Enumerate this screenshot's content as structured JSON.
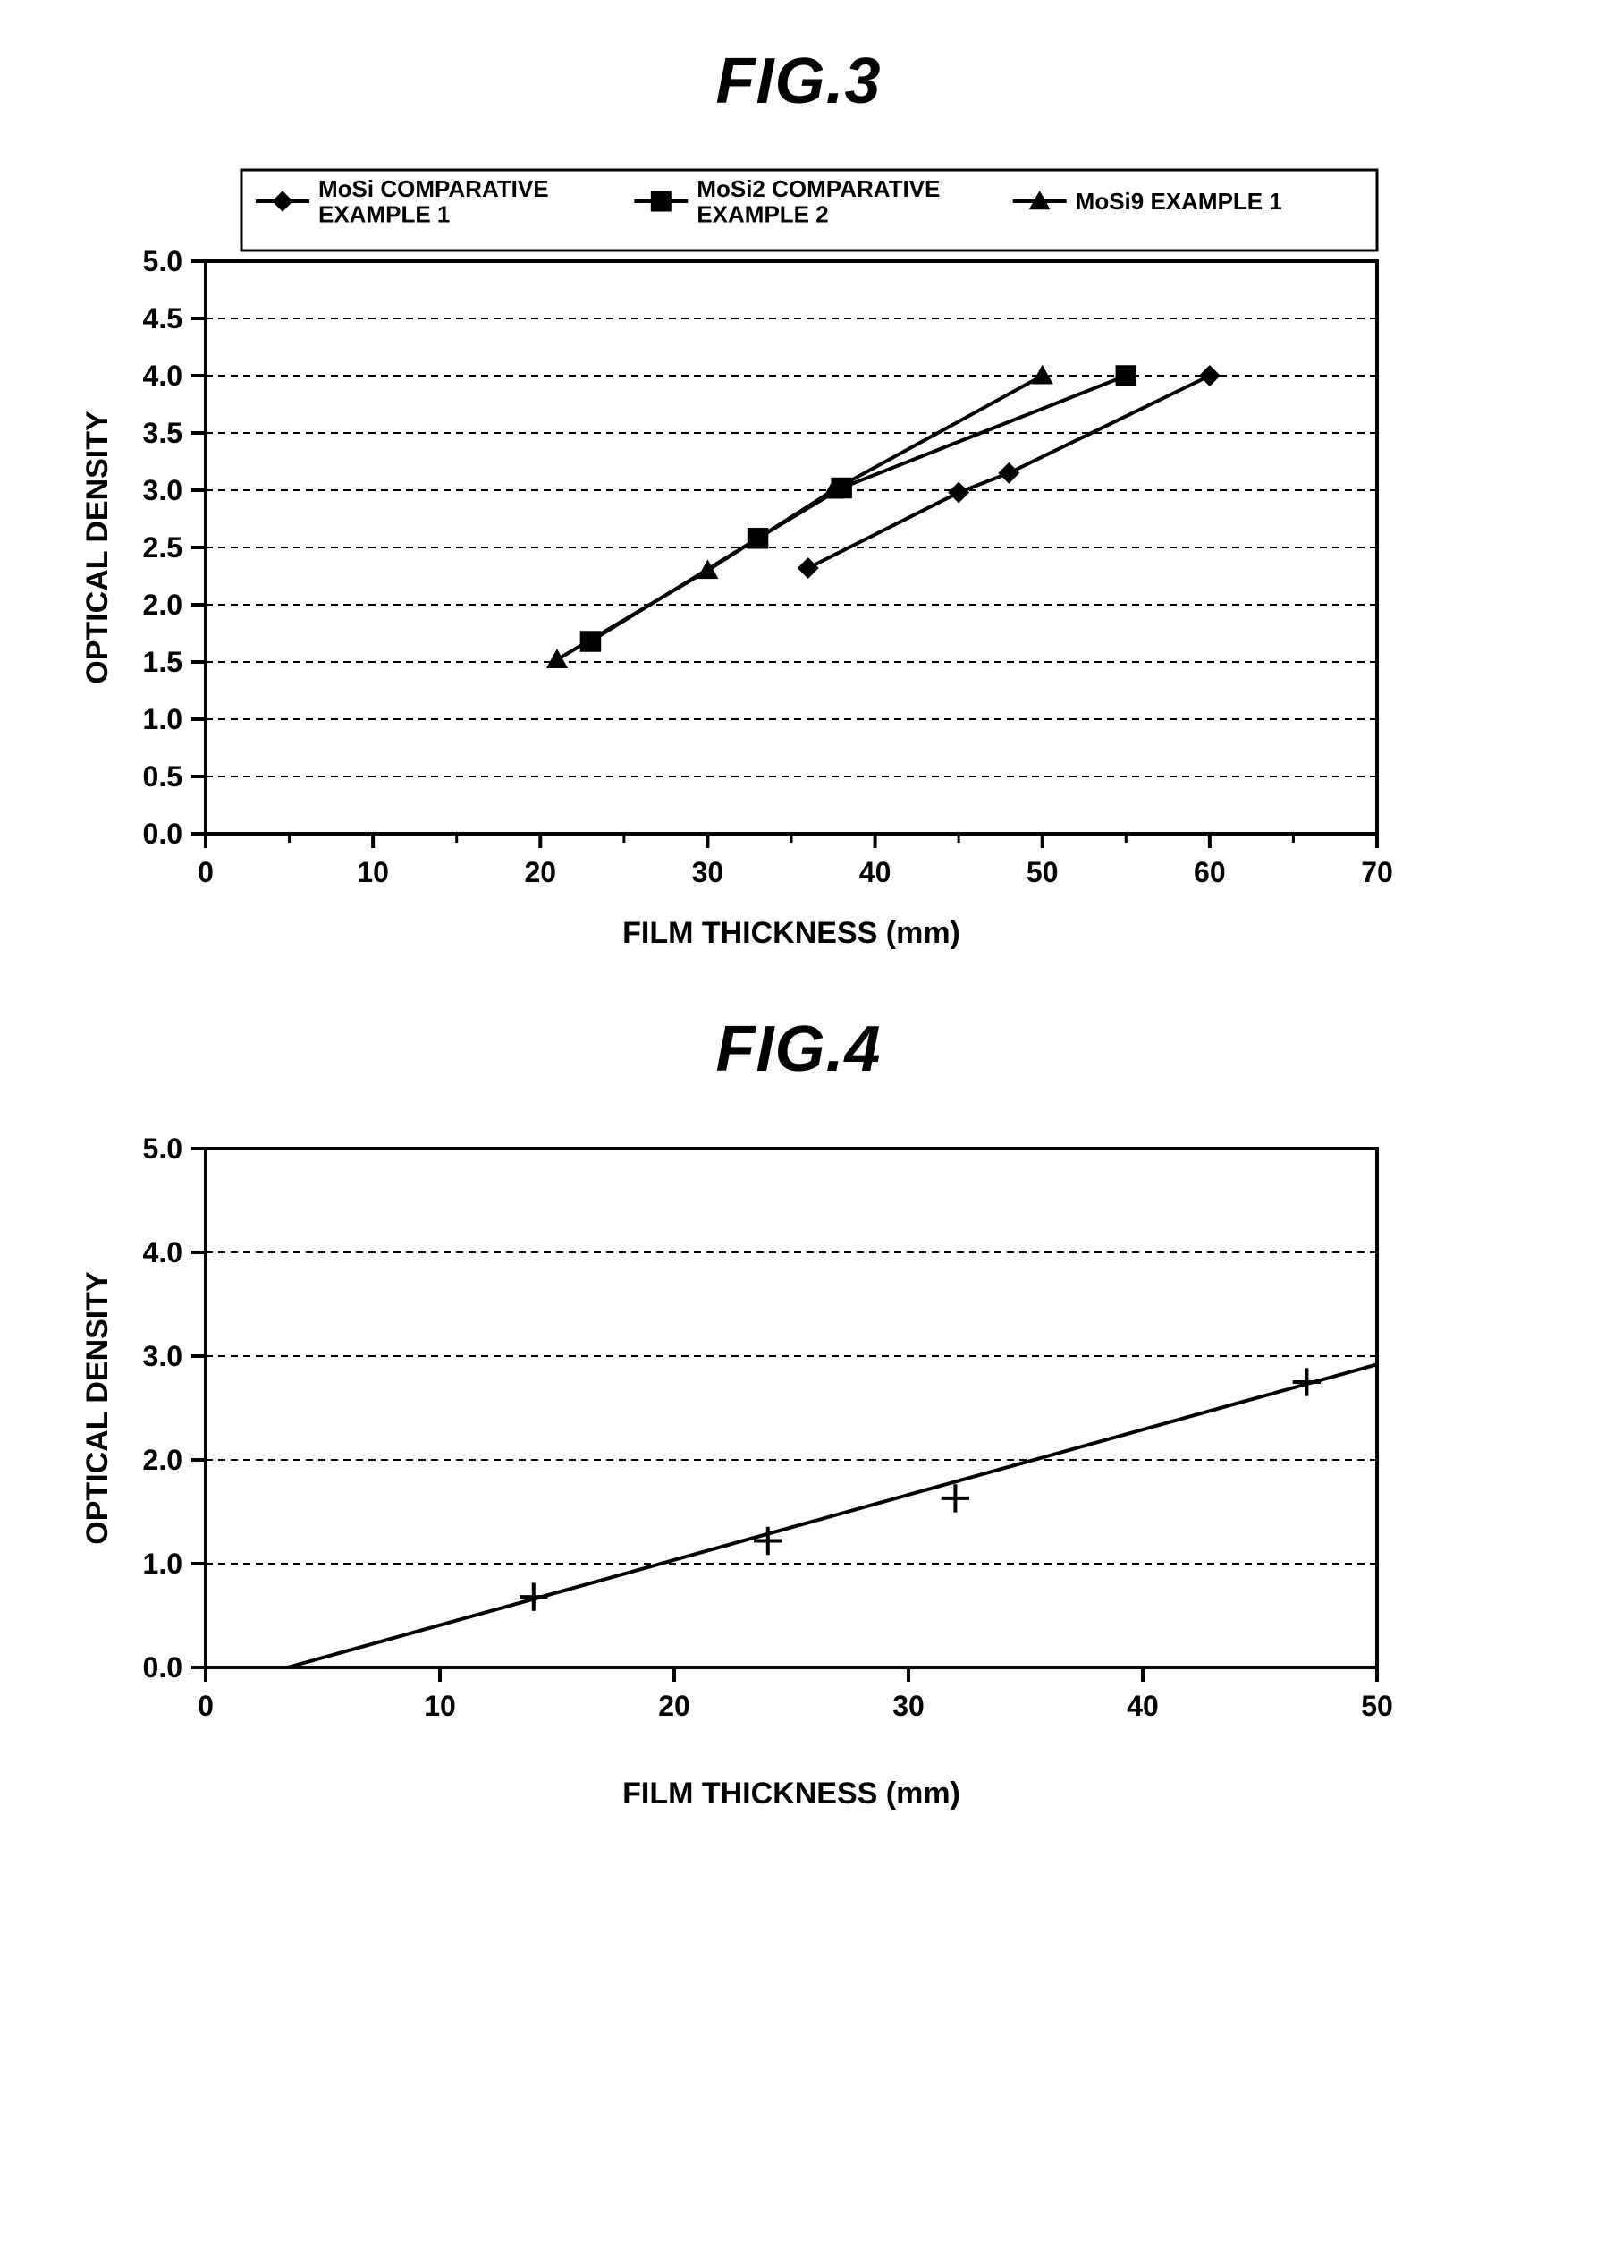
{
  "fig3": {
    "title": "FIG.3",
    "title_fontsize": 72,
    "title_fontstyle": "italic",
    "title_fontweight": "bold",
    "xlabel": "FILM THICKNESS (mm)",
    "ylabel": "OPTICAL DENSITY",
    "label_fontsize": 34,
    "label_fontweight": "bold",
    "tick_fontsize": 32,
    "tick_fontweight": "bold",
    "xlim": [
      0,
      70
    ],
    "ylim": [
      0.0,
      5.0
    ],
    "xticks": [
      0,
      10,
      20,
      30,
      40,
      50,
      60,
      70
    ],
    "yticks": [
      0.0,
      0.5,
      1.0,
      1.5,
      2.0,
      2.5,
      3.0,
      3.5,
      4.0,
      4.5,
      5.0
    ],
    "ytick_labels": [
      "0.0",
      "0.5",
      "1.0",
      "1.5",
      "2.0",
      "2.5",
      "3.0",
      "3.5",
      "4.0",
      "4.5",
      "5.0"
    ],
    "grid_color": "#000000",
    "grid_dash": "8,6",
    "border_color": "#000000",
    "border_width": 4,
    "background": "#ffffff",
    "legend": {
      "border_color": "#000000",
      "border_width": 3,
      "fontsize": 26,
      "fontweight": "bold",
      "items": [
        {
          "marker": "diamond",
          "label_line1": "MoSi COMPARATIVE",
          "label_line2": "EXAMPLE 1"
        },
        {
          "marker": "square",
          "label_line1": "MoSi2 COMPARATIVE",
          "label_line2": "EXAMPLE 2"
        },
        {
          "marker": "triangle",
          "label_line1": "MoSi9 EXAMPLE 1",
          "label_line2": ""
        }
      ]
    },
    "series": [
      {
        "name": "MoSi COMPARATIVE EXAMPLE 1",
        "marker": "diamond",
        "color": "#000000",
        "line_width": 4,
        "marker_size": 18,
        "x": [
          36,
          45,
          48,
          60
        ],
        "y": [
          2.32,
          2.98,
          3.15,
          4.0
        ]
      },
      {
        "name": "MoSi2 COMPARATIVE EXAMPLE 2",
        "marker": "square",
        "color": "#000000",
        "line_width": 4,
        "marker_size": 18,
        "x": [
          23,
          33,
          38,
          55
        ],
        "y": [
          1.68,
          2.58,
          3.02,
          4.0
        ]
      },
      {
        "name": "MoSi9 EXAMPLE 1",
        "marker": "triangle",
        "color": "#000000",
        "line_width": 4,
        "marker_size": 18,
        "x": [
          21,
          30,
          37.5,
          50
        ],
        "y": [
          1.52,
          2.3,
          3.0,
          4.0
        ]
      }
    ],
    "axis_line_width": 4,
    "minor_tick_len": 10,
    "major_tick_len": 16
  },
  "fig4": {
    "title": "FIG.4",
    "title_fontsize": 72,
    "title_fontstyle": "italic",
    "title_fontweight": "bold",
    "xlabel": "FILM THICKNESS (mm)",
    "ylabel": "OPTICAL DENSITY",
    "label_fontsize": 34,
    "label_fontweight": "bold",
    "tick_fontsize": 32,
    "tick_fontweight": "bold",
    "xlim": [
      0,
      50
    ],
    "ylim": [
      0.0,
      5.0
    ],
    "xticks": [
      0,
      10,
      20,
      30,
      40,
      50
    ],
    "yticks": [
      0.0,
      1.0,
      2.0,
      3.0,
      4.0,
      5.0
    ],
    "ytick_labels": [
      "0.0",
      "1.0",
      "2.0",
      "3.0",
      "4.0",
      "5.0"
    ],
    "grid_color": "#000000",
    "grid_dash": "8,6",
    "border_color": "#000000",
    "border_width": 4,
    "background": "#ffffff",
    "series": [
      {
        "name": "data",
        "marker": "plus",
        "color": "#000000",
        "line_width": 4,
        "marker_size": 22,
        "x": [
          14,
          24,
          32,
          47
        ],
        "y": [
          0.68,
          1.22,
          1.63,
          2.75
        ]
      }
    ],
    "fit_line": {
      "color": "#000000",
      "width": 4,
      "x1": 3.5,
      "y1": 0.0,
      "x2": 50,
      "y2": 2.92
    },
    "axis_line_width": 4,
    "minor_tick_len": 10,
    "major_tick_len": 16
  }
}
